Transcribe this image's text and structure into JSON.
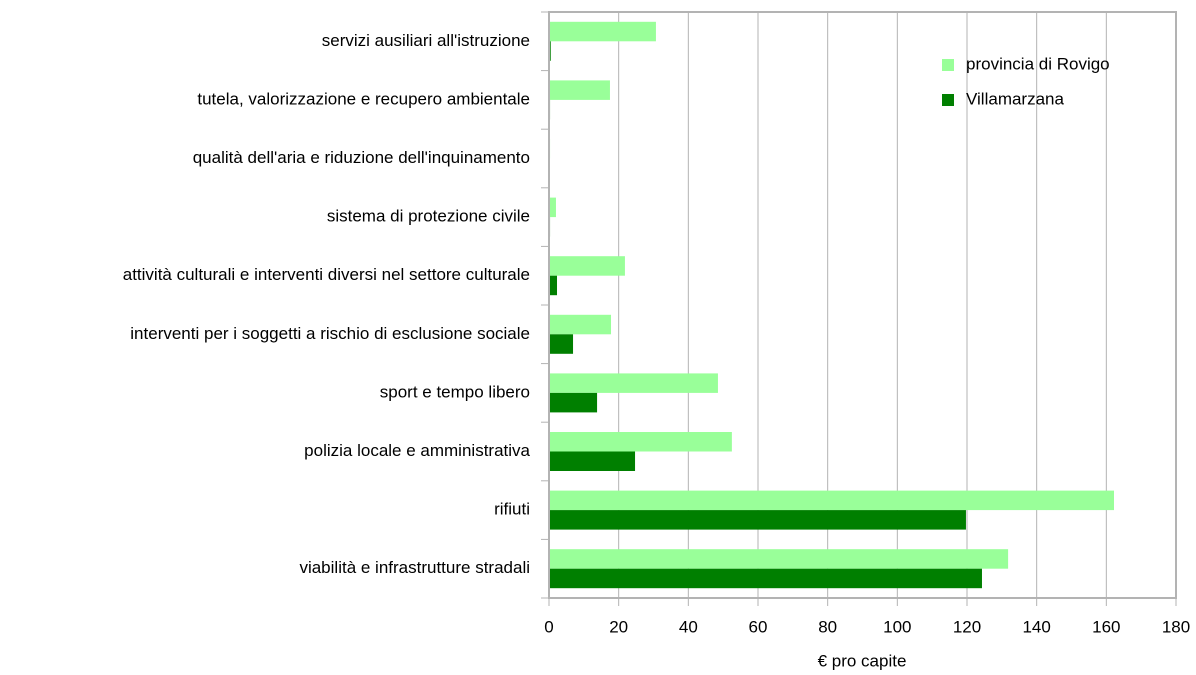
{
  "chart_data": {
    "type": "hbar",
    "categories": [
      "servizi ausiliari all'istruzione",
      "tutela, valorizzazione e recupero ambientale",
      "qualità dell'aria e riduzione dell'inquinamento",
      "sistema di protezione civile",
      "attività culturali e interventi diversi nel settore culturale",
      "interventi per i soggetti a rischio di esclusione sociale",
      "sport e tempo libero",
      "polizia locale e amministrativa",
      "rifiuti",
      "viabilità e infrastrutture stradali"
    ],
    "series": [
      {
        "name": "provincia di Rovigo",
        "color": "#99ff99",
        "values": [
          30.7,
          17.5,
          0.3,
          2,
          21.8,
          17.8,
          48.5,
          52.5,
          162.2,
          131.8
        ]
      },
      {
        "name": "Villamarzana",
        "color": "#007f00",
        "values": [
          0.5,
          0.3,
          0.2,
          0.3,
          2.3,
          6.9,
          13.8,
          24.7,
          119.7,
          124.3
        ]
      }
    ],
    "xlabel": "€ pro capite",
    "xlim": [
      0,
      180
    ],
    "xticks": [
      0,
      20,
      40,
      60,
      80,
      100,
      120,
      140,
      160,
      180
    ],
    "grid": true,
    "legend": "upper right"
  }
}
